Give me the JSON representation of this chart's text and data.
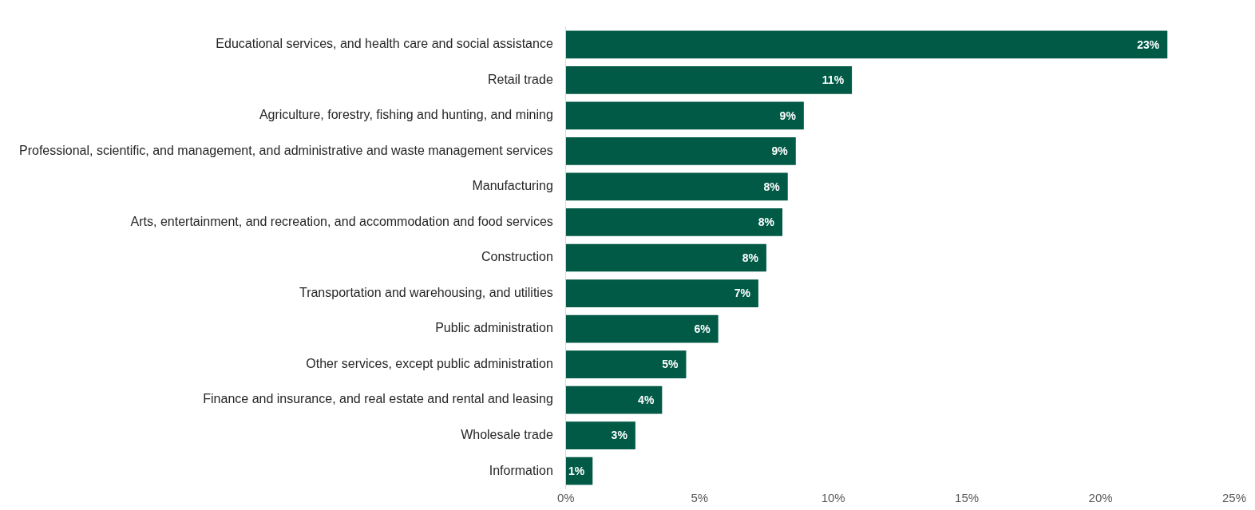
{
  "chart_data": {
    "type": "bar",
    "orientation": "horizontal",
    "categories": [
      "Educational services, and health care and social assistance",
      "Retail trade",
      "Agriculture, forestry, fishing and hunting, and mining",
      "Professional, scientific, and management, and administrative and waste management services",
      "Manufacturing",
      "Arts, entertainment, and recreation, and accommodation and food services",
      "Construction",
      "Transportation and warehousing, and utilities",
      "Public administration",
      "Other services, except public administration",
      "Finance and insurance, and real estate and rental and leasing",
      "Wholesale trade",
      "Information"
    ],
    "values": [
      22.5,
      10.7,
      8.9,
      8.6,
      8.3,
      8.1,
      7.5,
      7.2,
      5.7,
      4.5,
      3.6,
      2.6,
      1.0
    ],
    "value_labels": [
      "23%",
      "11%",
      "9%",
      "9%",
      "8%",
      "8%",
      "8%",
      "7%",
      "6%",
      "5%",
      "4%",
      "3%",
      "1%"
    ],
    "color": "#005a46",
    "xlim": [
      0,
      25
    ],
    "xticks": [
      {
        "value": 0,
        "label": "0%"
      },
      {
        "value": 5,
        "label": "5%"
      },
      {
        "value": 10,
        "label": "10%"
      },
      {
        "value": 15,
        "label": "15%"
      },
      {
        "value": 20,
        "label": "20%"
      },
      {
        "value": 25,
        "label": "25%"
      }
    ]
  }
}
